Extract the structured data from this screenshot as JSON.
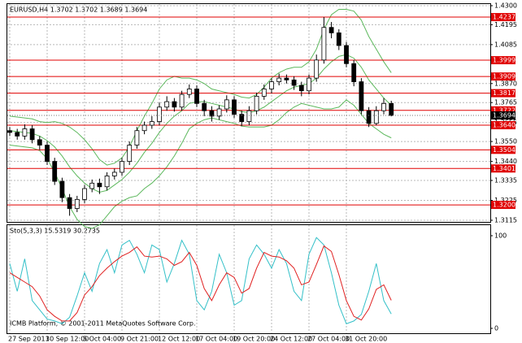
{
  "chart_data": [
    {
      "type": "candlestick",
      "title": "EURUSD,H4  1.3702 1.3702 1.3689 1.3694",
      "categories": [
        "27 Sep 2011",
        null,
        null,
        null,
        null,
        "30 Sep 12:00",
        null,
        null,
        null,
        null,
        "5 Oct 04:00",
        null,
        null,
        null,
        null,
        "9 Oct 21:00",
        null,
        null,
        null,
        null,
        "12 Oct 12:00",
        null,
        null,
        null,
        null,
        "17 Oct 04:00",
        null,
        null,
        null,
        null,
        "19 Oct 20:00",
        null,
        null,
        null,
        null,
        "24 Oct 12:00",
        null,
        null,
        null,
        null,
        "27 Oct 04:00",
        null,
        null,
        null,
        null,
        "31 Oct 20:00",
        null,
        null,
        null,
        null,
        null,
        null
      ],
      "open": [
        1.361,
        1.36,
        1.358,
        1.362,
        1.356,
        1.353,
        1.344,
        1.333,
        1.324,
        1.318,
        1.323,
        1.329,
        1.332,
        1.33,
        1.336,
        1.338,
        1.344,
        1.353,
        1.361,
        1.364,
        1.366,
        1.374,
        1.377,
        1.374,
        1.381,
        1.384,
        1.376,
        1.372,
        1.369,
        1.373,
        1.378,
        1.37,
        1.366,
        1.372,
        1.38,
        1.384,
        1.388,
        1.39,
        1.389,
        1.386,
        1.383,
        1.39,
        1.4,
        1.418,
        1.415,
        1.408,
        1.398,
        1.388,
        1.372,
        1.365,
        1.372,
        1.376
      ],
      "high": [
        1.363,
        1.362,
        1.3645,
        1.364,
        1.358,
        1.355,
        1.346,
        1.335,
        1.326,
        1.325,
        1.331,
        1.334,
        1.3345,
        1.338,
        1.34,
        1.346,
        1.355,
        1.363,
        1.366,
        1.369,
        1.3765,
        1.38,
        1.379,
        1.383,
        1.3865,
        1.386,
        1.378,
        1.3745,
        1.375,
        1.3805,
        1.38,
        1.372,
        1.3745,
        1.382,
        1.3865,
        1.39,
        1.3925,
        1.392,
        1.391,
        1.388,
        1.392,
        1.403,
        1.4237,
        1.421,
        1.417,
        1.41,
        1.4,
        1.39,
        1.374,
        1.3745,
        1.379,
        1.3775
      ],
      "low": [
        1.358,
        1.356,
        1.356,
        1.354,
        1.3505,
        1.342,
        1.331,
        1.3215,
        1.314,
        1.316,
        1.321,
        1.327,
        1.326,
        1.328,
        1.334,
        1.336,
        1.342,
        1.351,
        1.359,
        1.362,
        1.364,
        1.372,
        1.3715,
        1.372,
        1.379,
        1.374,
        1.369,
        1.366,
        1.367,
        1.371,
        1.368,
        1.3635,
        1.364,
        1.37,
        1.378,
        1.3815,
        1.386,
        1.387,
        1.3835,
        1.38,
        1.381,
        1.388,
        1.398,
        1.412,
        1.4055,
        1.396,
        1.3855,
        1.37,
        1.363,
        1.364,
        1.37,
        1.3689
      ],
      "close": [
        1.36,
        1.358,
        1.362,
        1.356,
        1.353,
        1.344,
        1.333,
        1.324,
        1.318,
        1.323,
        1.329,
        1.332,
        1.33,
        1.336,
        1.338,
        1.344,
        1.353,
        1.361,
        1.364,
        1.366,
        1.374,
        1.377,
        1.374,
        1.381,
        1.384,
        1.376,
        1.372,
        1.369,
        1.373,
        1.378,
        1.37,
        1.366,
        1.372,
        1.38,
        1.384,
        1.388,
        1.39,
        1.389,
        1.386,
        1.383,
        1.39,
        1.4,
        1.418,
        1.415,
        1.408,
        1.398,
        1.388,
        1.372,
        1.365,
        1.372,
        1.376,
        1.3694
      ],
      "bands": {
        "color": "#5cb85c",
        "upper": [
          1.369,
          1.3685,
          1.368,
          1.3675,
          1.366,
          1.3655,
          1.366,
          1.365,
          1.363,
          1.36,
          1.356,
          1.351,
          1.345,
          1.342,
          1.343,
          1.346,
          1.352,
          1.361,
          1.369,
          1.376,
          1.384,
          1.389,
          1.391,
          1.39,
          1.39,
          1.389,
          1.387,
          1.384,
          1.383,
          1.382,
          1.381,
          1.3795,
          1.379,
          1.381,
          1.385,
          1.39,
          1.393,
          1.395,
          1.396,
          1.396,
          1.399,
          1.406,
          1.417,
          1.425,
          1.428,
          1.428,
          1.427,
          1.422,
          1.413,
          1.406,
          1.399,
          1.393
        ],
        "middle": [
          1.361,
          1.3605,
          1.36,
          1.3595,
          1.358,
          1.3555,
          1.352,
          1.347,
          1.341,
          1.336,
          1.332,
          1.329,
          1.327,
          1.328,
          1.331,
          1.334,
          1.338,
          1.343,
          1.349,
          1.354,
          1.36,
          1.365,
          1.369,
          1.372,
          1.376,
          1.377,
          1.377,
          1.376,
          1.375,
          1.374,
          1.373,
          1.3715,
          1.371,
          1.372,
          1.374,
          1.377,
          1.38,
          1.383,
          1.385,
          1.386,
          1.387,
          1.39,
          1.395,
          1.399,
          1.402,
          1.403,
          1.401,
          1.396,
          1.389,
          1.384,
          1.379,
          1.375
        ],
        "lower": [
          1.353,
          1.3525,
          1.352,
          1.3515,
          1.35,
          1.3455,
          1.338,
          1.329,
          1.319,
          1.312,
          1.308,
          1.307,
          1.309,
          1.314,
          1.319,
          1.322,
          1.324,
          1.325,
          1.329,
          1.332,
          1.336,
          1.341,
          1.347,
          1.354,
          1.362,
          1.365,
          1.367,
          1.368,
          1.367,
          1.366,
          1.365,
          1.3635,
          1.363,
          1.363,
          1.363,
          1.364,
          1.367,
          1.371,
          1.374,
          1.376,
          1.375,
          1.374,
          1.373,
          1.373,
          1.374,
          1.378,
          1.375,
          1.37,
          1.365,
          1.362,
          1.359,
          1.357
        ]
      },
      "levels": [
        1.4237,
        1.3999,
        1.3909,
        1.3817,
        1.3722,
        {
          "value": 1.364,
          "label": "1.3640"
        },
        1.3504,
        1.3401,
        {
          "value": 1.32,
          "label": "1.3200"
        }
      ],
      "level_color": "#e00000",
      "last_price": 1.3694,
      "ylim": [
        1.3115,
        1.43
      ],
      "yticks": [
        {
          "value": 1.43,
          "label": "1.4300"
        },
        1.4195,
        1.4085,
        {
          "value": 1.387,
          "label": "1.3870"
        },
        1.3765,
        1.3655,
        {
          "value": 1.355,
          "label": "1.3550"
        },
        {
          "value": 1.344,
          "label": "1.3440"
        },
        1.3335,
        1.3225,
        1.3115
      ],
      "grid": true
    },
    {
      "type": "line",
      "title": "Sto(5,3,3) 15.5319 30.2735",
      "series": [
        {
          "color": "#33c0c8",
          "values": [
            70,
            40,
            75,
            30,
            20,
            10,
            8,
            5,
            12,
            35,
            60,
            40,
            70,
            85,
            60,
            90,
            95,
            80,
            60,
            90,
            85,
            50,
            70,
            95,
            80,
            30,
            20,
            40,
            80,
            60,
            25,
            30,
            75,
            90,
            80,
            65,
            85,
            70,
            40,
            30,
            80,
            98,
            90,
            60,
            25,
            5,
            8,
            15,
            40,
            70,
            30,
            15.5319
          ]
        },
        {
          "color": "#e02020",
          "values": [
            60,
            55,
            50,
            45,
            35,
            20,
            13,
            8,
            8,
            17,
            36,
            45,
            57,
            65,
            72,
            78,
            82,
            88,
            78,
            77,
            78,
            75,
            68,
            72,
            82,
            68,
            43,
            30,
            47,
            60,
            55,
            38,
            43,
            65,
            82,
            78,
            77,
            73,
            65,
            47,
            50,
            69,
            89,
            83,
            58,
            30,
            13,
            9,
            21,
            42,
            47,
            30.2735
          ]
        }
      ],
      "ylim": [
        0,
        100
      ],
      "yticks": [
        100,
        0
      ]
    }
  ],
  "footer": "ICMB Platform, © 2001-2011 MetaQuotes Software Corp."
}
